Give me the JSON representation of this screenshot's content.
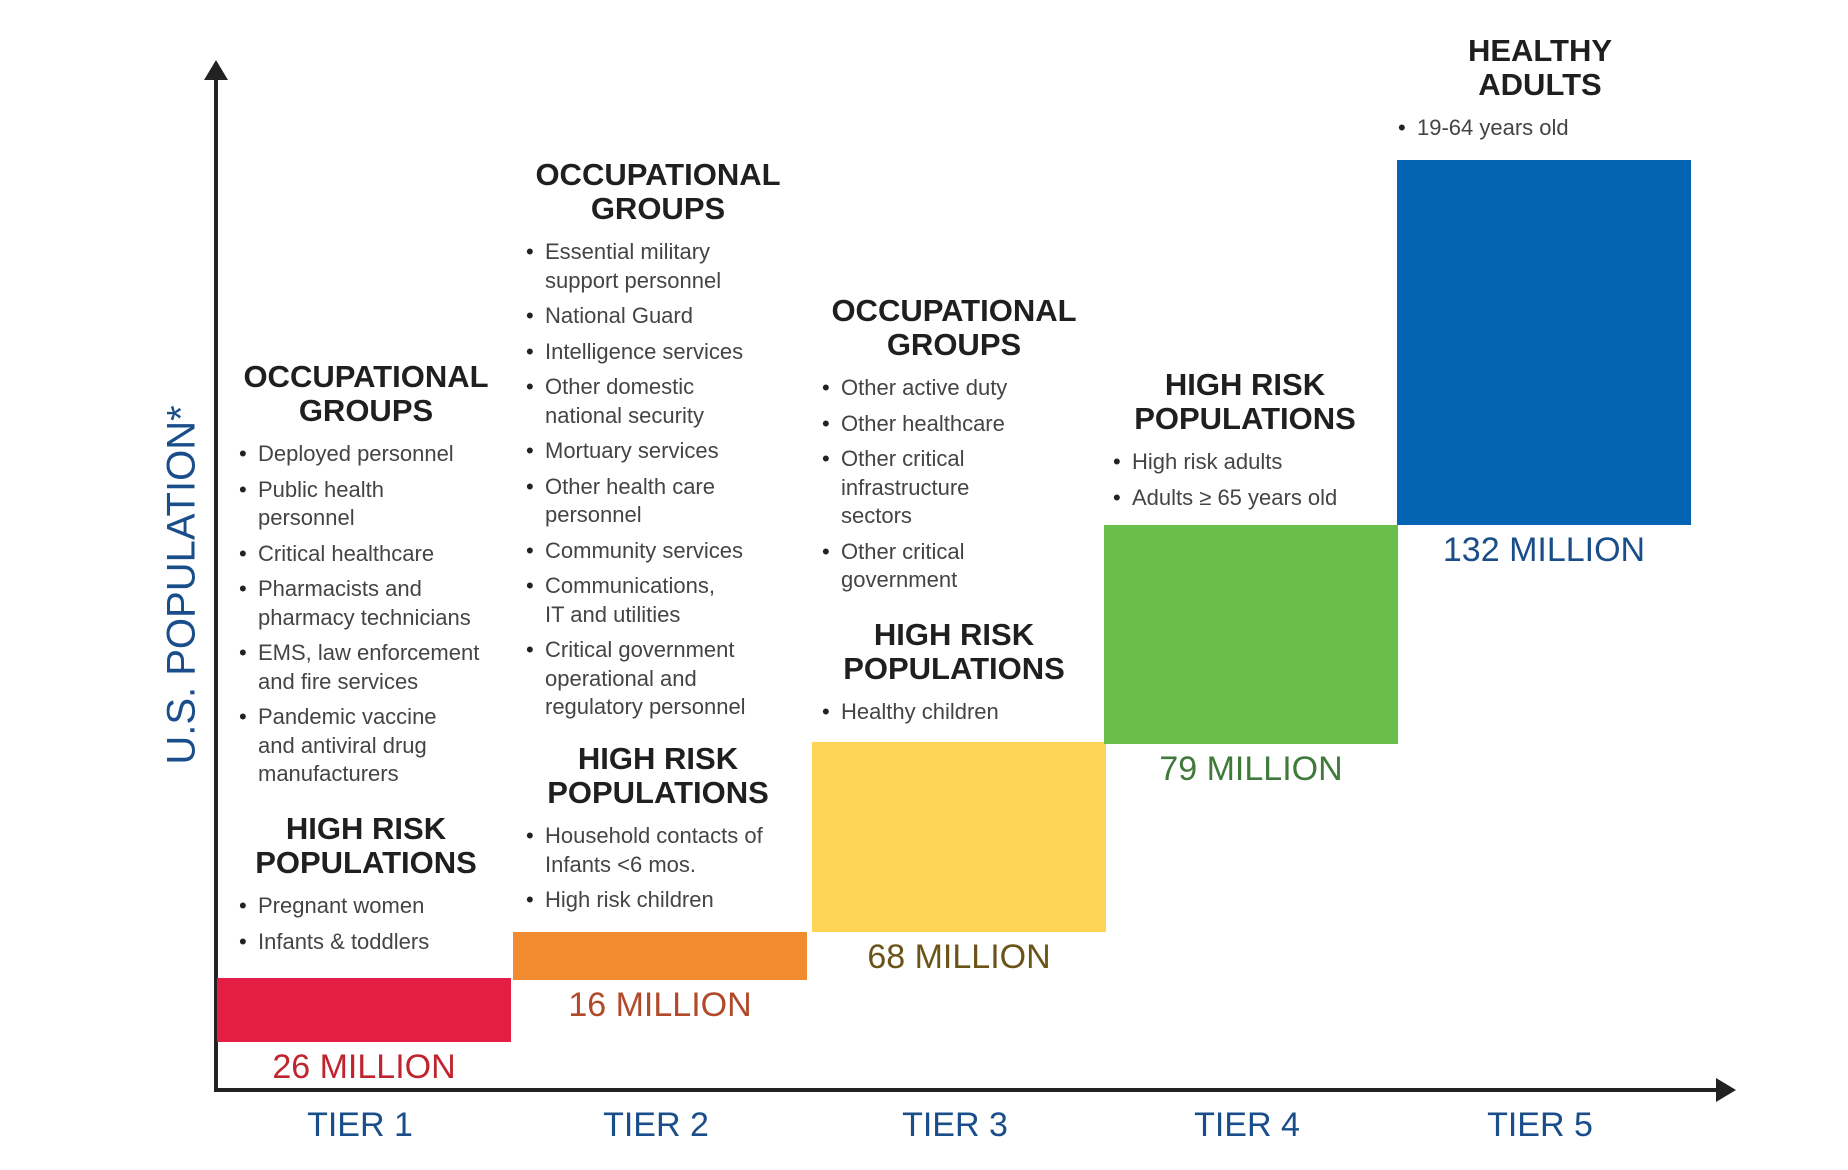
{
  "y_axis_title": "U.S. POPULATION*",
  "colors": {
    "axis": "#222222",
    "tier_label": "#1a4e8a",
    "tier1": "#e31d44",
    "tier2": "#f28b30",
    "tier3": "#fdd455",
    "tier4": "#6abe4a",
    "tier5": "#0463b2",
    "amount1": "#c0252f",
    "amount2": "#b14a2a",
    "amount3": "#6b5418",
    "amount4": "#3f7a3a",
    "amount5": "#1a4e8a"
  },
  "tiers": [
    {
      "label": "TIER 1",
      "amount": "26 MILLION",
      "population_millions": 26,
      "groups": [
        {
          "heading": [
            "OCCUPATIONAL",
            "GROUPS"
          ],
          "items": [
            [
              "Deployed personnel"
            ],
            [
              "Public health",
              "personnel"
            ],
            [
              "Critical healthcare"
            ],
            [
              "Pharmacists and",
              "pharmacy technicians"
            ],
            [
              "EMS, law enforcement",
              "and fire services"
            ],
            [
              "Pandemic vaccine",
              "and antiviral drug",
              "manufacturers"
            ]
          ]
        },
        {
          "heading": [
            "HIGH RISK",
            "POPULATIONS"
          ],
          "items": [
            [
              "Pregnant women"
            ],
            [
              "Infants & toddlers"
            ]
          ]
        }
      ]
    },
    {
      "label": "TIER 2",
      "amount": "16 MILLION",
      "population_millions": 16,
      "groups": [
        {
          "heading": [
            "OCCUPATIONAL",
            "GROUPS"
          ],
          "items": [
            [
              "Essential military",
              "support personnel"
            ],
            [
              "National Guard"
            ],
            [
              "Intelligence services"
            ],
            [
              "Other domestic",
              "national security"
            ],
            [
              "Mortuary services"
            ],
            [
              "Other health care",
              "personnel"
            ],
            [
              "Community services"
            ],
            [
              "Communications,",
              "IT and utilities"
            ],
            [
              "Critical government",
              "operational and",
              "regulatory personnel"
            ]
          ]
        },
        {
          "heading": [
            "HIGH RISK",
            "POPULATIONS"
          ],
          "items": [
            [
              "Household contacts of",
              "Infants <6 mos."
            ],
            [
              "High risk children"
            ]
          ]
        }
      ]
    },
    {
      "label": "TIER 3",
      "amount": "68 MILLION",
      "population_millions": 68,
      "groups": [
        {
          "heading": [
            "OCCUPATIONAL",
            "GROUPS"
          ],
          "items": [
            [
              "Other active duty"
            ],
            [
              "Other healthcare"
            ],
            [
              "Other critical",
              "infrastructure",
              "sectors"
            ],
            [
              "Other critical",
              "government"
            ]
          ]
        },
        {
          "heading": [
            "HIGH RISK",
            "POPULATIONS"
          ],
          "items": [
            [
              "Healthy children"
            ]
          ]
        }
      ]
    },
    {
      "label": "TIER 4",
      "amount": "79 MILLION",
      "population_millions": 79,
      "groups": [
        {
          "heading": [
            "HIGH RISK",
            "POPULATIONS"
          ],
          "items": [
            [
              "High risk adults"
            ],
            [
              "Adults ≥ 65 years old"
            ]
          ]
        }
      ]
    },
    {
      "label": "TIER 5",
      "amount": "132 MILLION",
      "population_millions": 132,
      "groups": [
        {
          "heading": [
            "HEALTHY",
            "ADULTS"
          ],
          "items": [
            [
              "19-64 years old"
            ]
          ]
        }
      ]
    }
  ]
}
